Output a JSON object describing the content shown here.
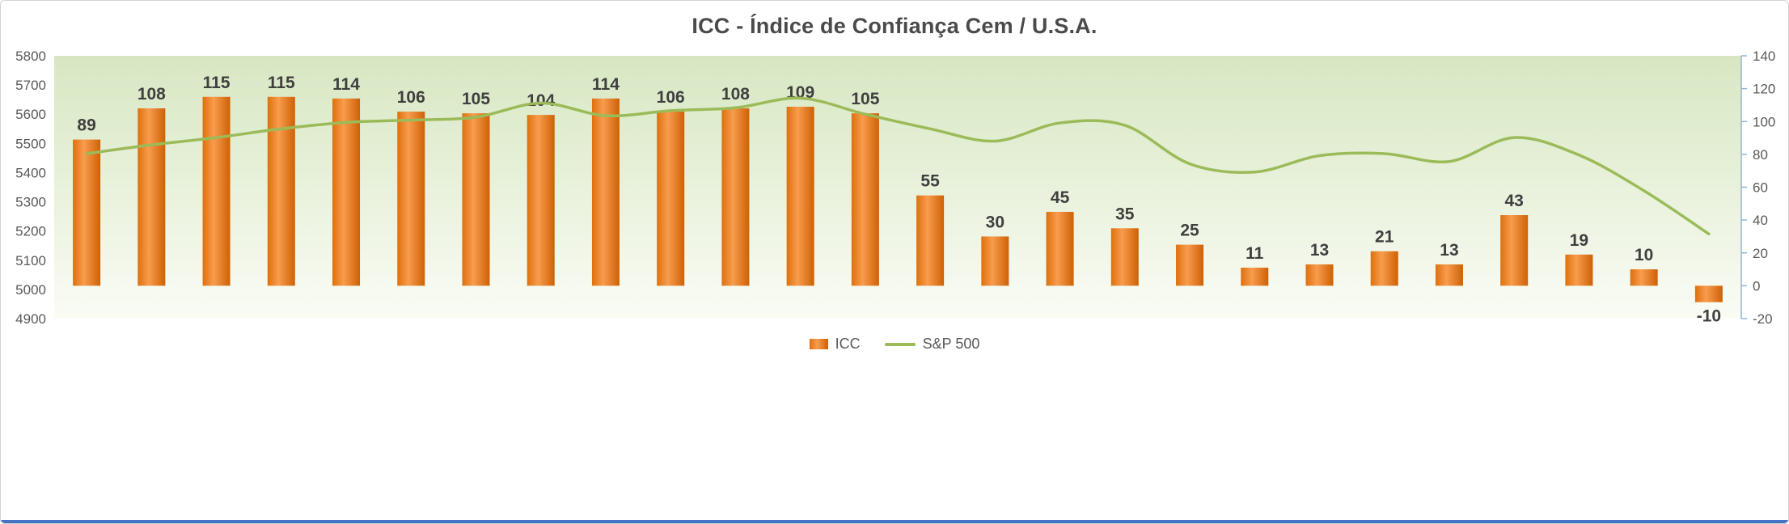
{
  "chart_data": {
    "type": "combo-bar-line",
    "title": "ICC - Índice de Confiança Cem / U.S.A.",
    "legend_position": "bottom",
    "grid": false,
    "plot_background": [
      "#D7E7C2",
      "#FAFCF5"
    ],
    "series": [
      {
        "name": "ICC",
        "type": "bar",
        "axis": "right",
        "color": "#E8730F",
        "gradient": [
          "#DE700C",
          "#F89C4E",
          "#CE6105"
        ],
        "data_labels": true,
        "values": [
          89,
          108,
          115,
          115,
          114,
          106,
          105,
          104,
          114,
          106,
          108,
          109,
          105,
          55,
          30,
          45,
          35,
          25,
          11,
          13,
          21,
          13,
          43,
          19,
          10,
          -10
        ]
      },
      {
        "name": "S&P 500",
        "type": "line",
        "axis": "left",
        "color": "#9BBB59",
        "values": [
          5465,
          5495,
          5520,
          5550,
          5572,
          5580,
          5590,
          5638,
          5595,
          5612,
          5622,
          5655,
          5600,
          5550,
          5508,
          5570,
          5562,
          5430,
          5402,
          5458,
          5465,
          5438,
          5520,
          5460,
          5338,
          5190
        ]
      }
    ],
    "left_axis": {
      "min": 4900,
      "max": 5800,
      "ticks": [
        5800,
        5700,
        5600,
        5500,
        5400,
        5300,
        5200,
        5100,
        5000,
        4900
      ]
    },
    "right_axis": {
      "min": -20,
      "max": 140,
      "ticks": [
        140,
        120,
        100,
        80,
        60,
        40,
        20,
        0,
        -20
      ],
      "line_color": "#95B3D7"
    }
  },
  "window": {
    "bottom_accent_color": "#4472C4"
  }
}
